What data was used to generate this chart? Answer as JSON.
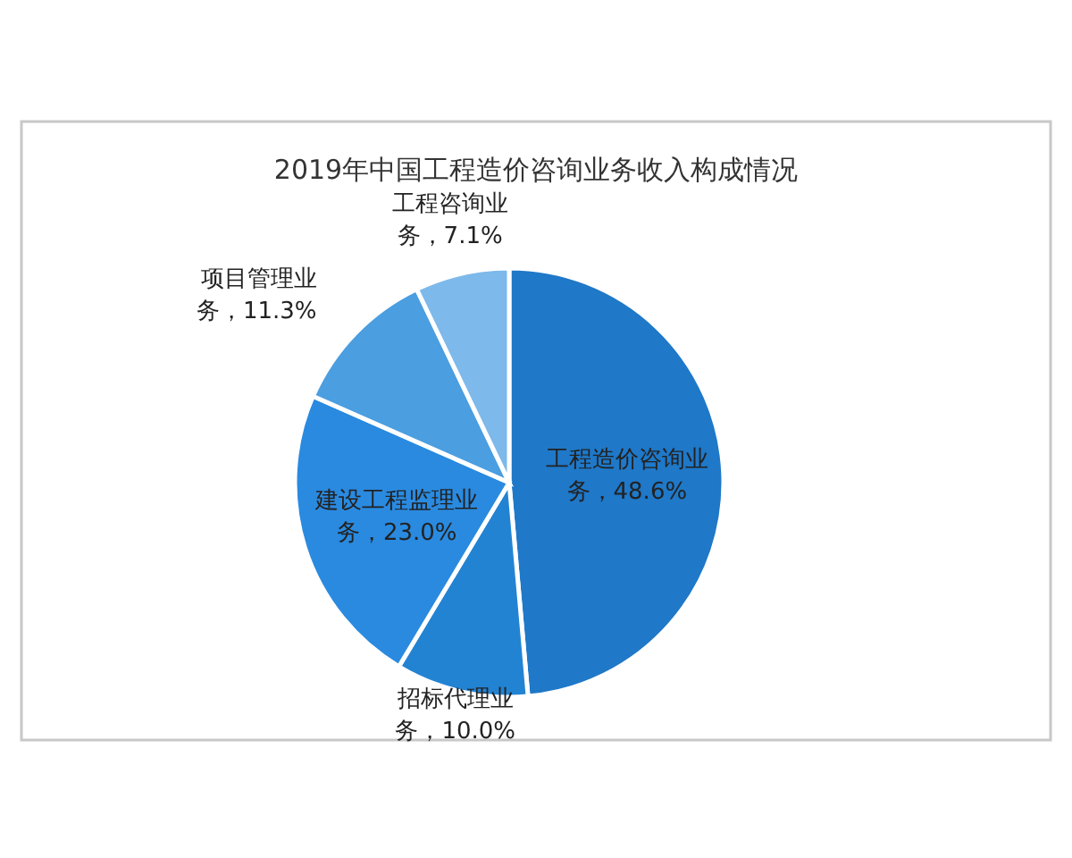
{
  "chart_data": {
    "type": "pie",
    "title": "2019年中国工程造价咨询业务收入构成情况",
    "categories": [
      "工程造价咨询业务",
      "招标代理业务",
      "建设工程监理业务",
      "项目管理业务",
      "工程咨询业务"
    ],
    "values": [
      48.6,
      10.0,
      23.0,
      11.3,
      7.1
    ],
    "value_labels": [
      "48.6%",
      "10.0%",
      "23.0%",
      "11.3%",
      "7.1%"
    ],
    "colors": [
      "#1f78c8",
      "#2383d3",
      "#2a8ae0",
      "#4b9ee0",
      "#7db9ea"
    ]
  }
}
